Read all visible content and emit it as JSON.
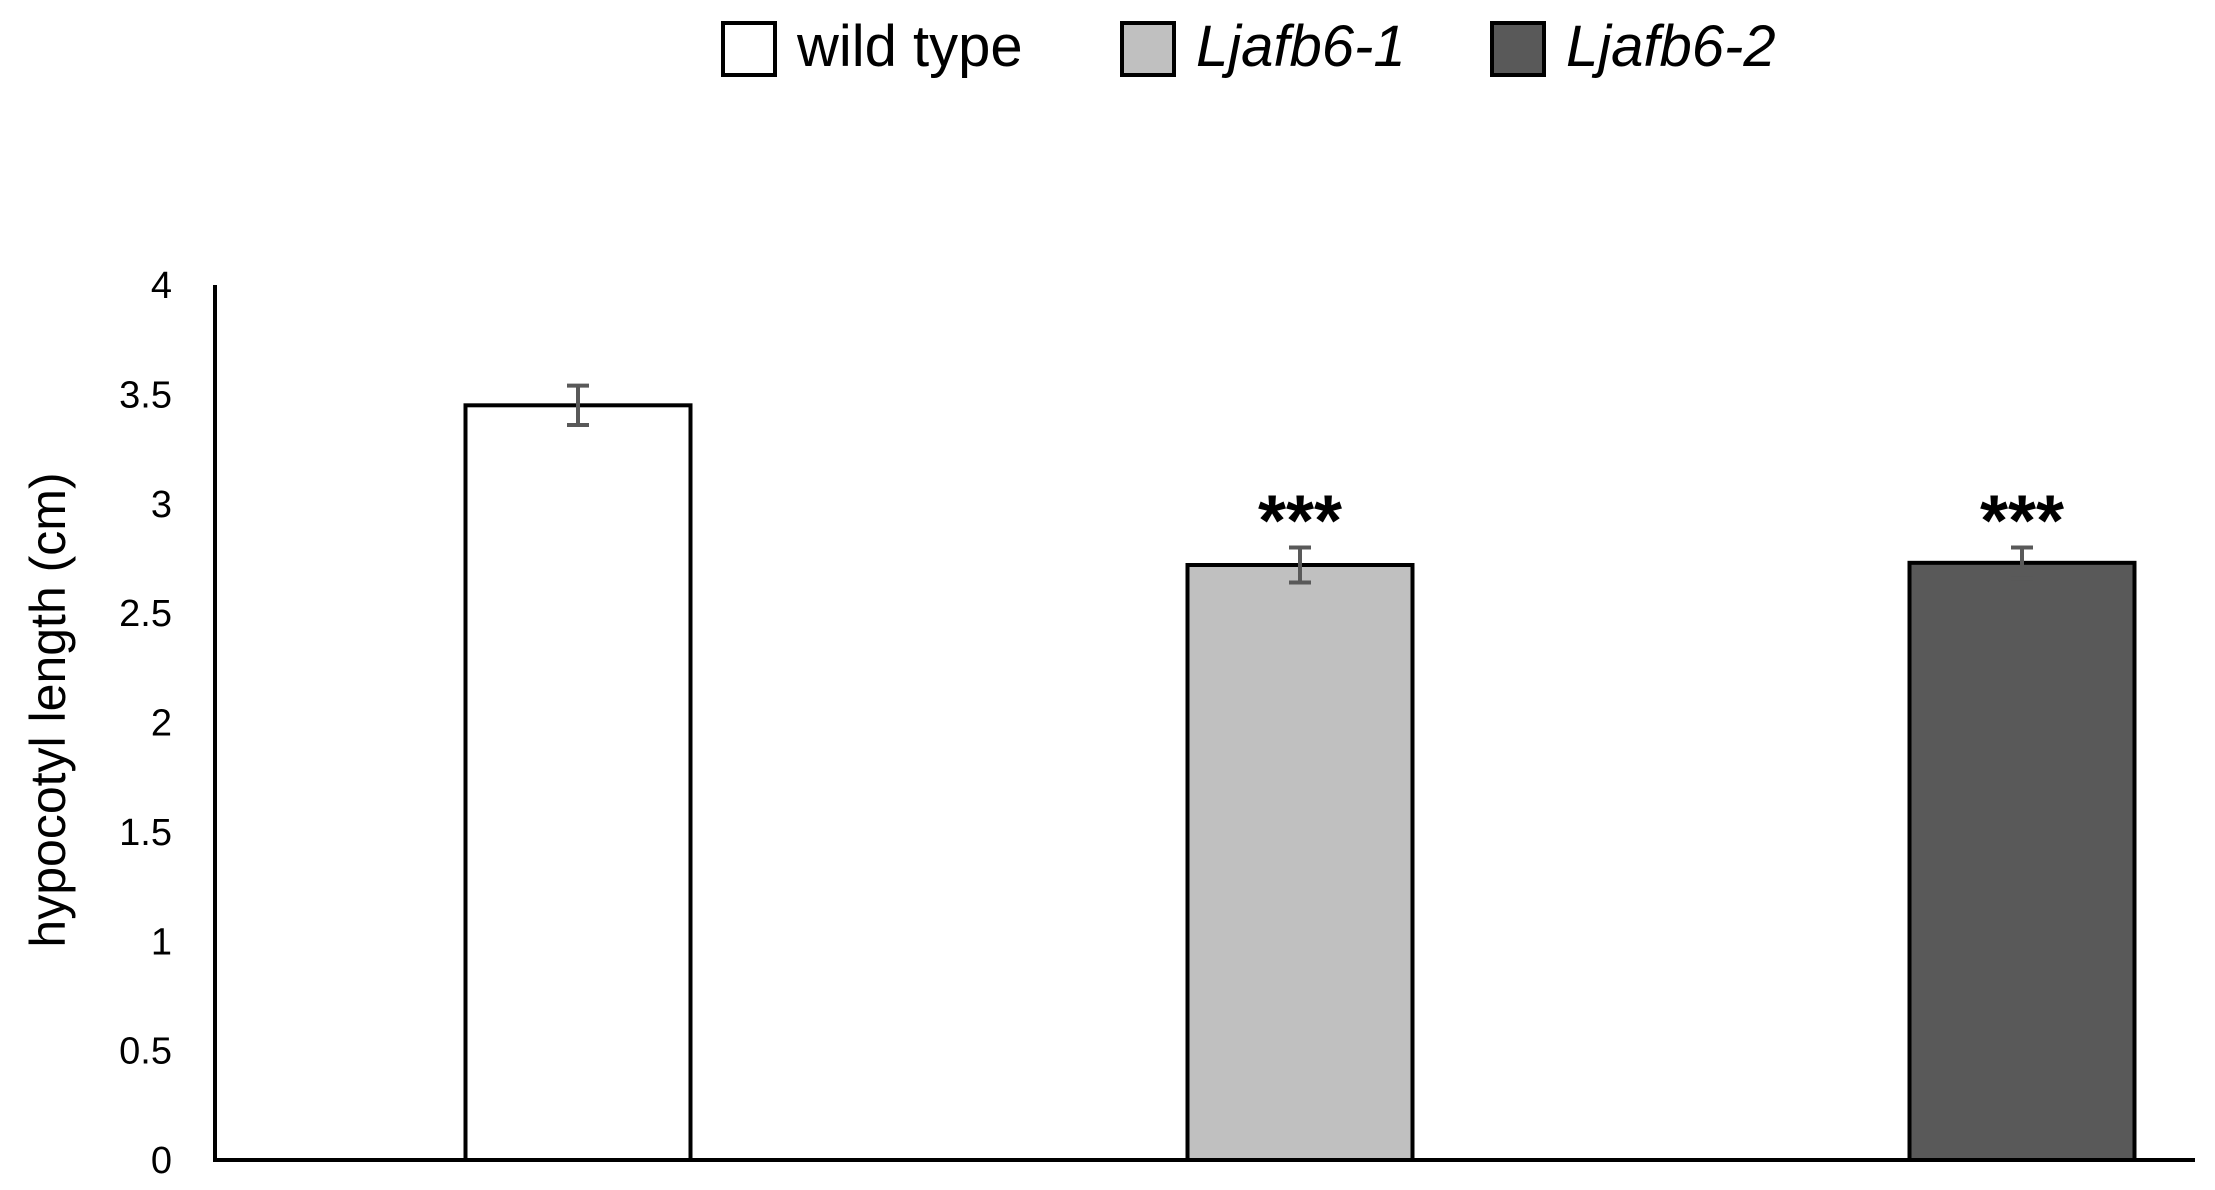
{
  "chart_data": {
    "type": "bar",
    "title": "",
    "xlabel": "",
    "ylabel": "hypocotyl length (cm)",
    "ylim": [
      0,
      4
    ],
    "yticks": [
      "0",
      "0.5",
      "1",
      "1.5",
      "2",
      "2.5",
      "3",
      "3.5",
      "4"
    ],
    "grid": false,
    "legend_position": "top-center",
    "series": [
      {
        "name": "wild type",
        "value": 3.45,
        "error": 0.09,
        "color": "#ffffff",
        "italic": false,
        "significance": ""
      },
      {
        "name": "Ljafb6-1",
        "value": 2.72,
        "error": 0.08,
        "color": "#c0c0c0",
        "italic": true,
        "significance": "***"
      },
      {
        "name": "Ljafb6-2",
        "value": 2.73,
        "error": 0.07,
        "color": "#595959",
        "italic": true,
        "significance": "***"
      }
    ],
    "bar_outline_color": "#000000",
    "error_bar_color": "#595959"
  }
}
